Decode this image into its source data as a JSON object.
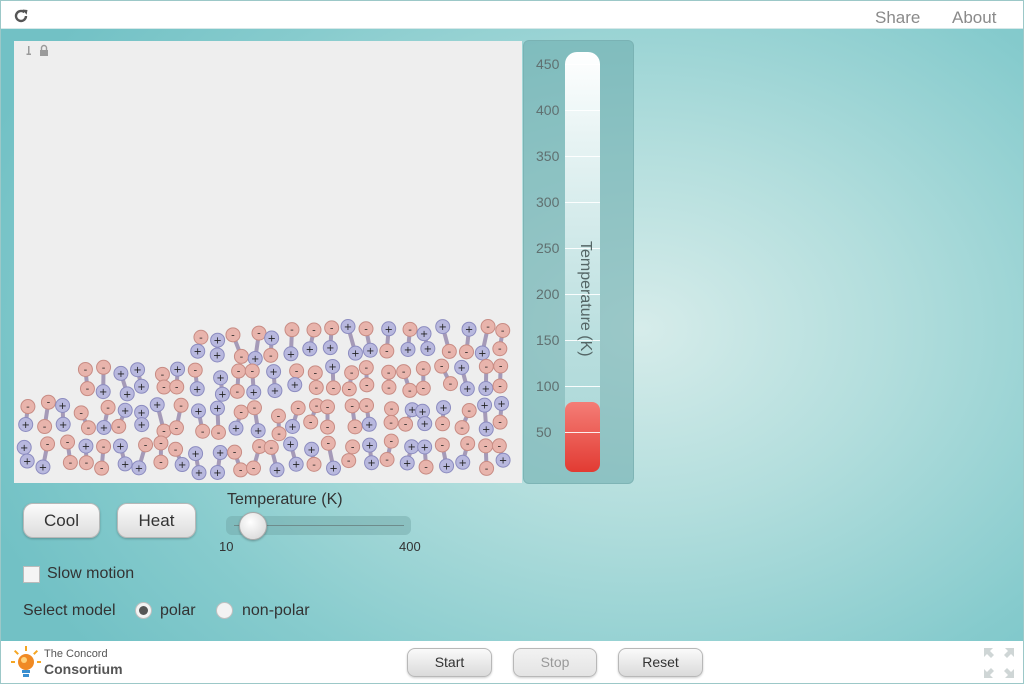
{
  "topbar": {
    "share": "Share",
    "about": "About"
  },
  "thermometer": {
    "axis_label": "Temperature (K)",
    "ticks": [
      "450",
      "400",
      "350",
      "300",
      "250",
      "200",
      "150",
      "100",
      "50"
    ],
    "max": 450,
    "value": 83
  },
  "controls": {
    "cool": "Cool",
    "heat": "Heat",
    "slider": {
      "title": "Temperature (K)",
      "min_label": "10",
      "max_label": "400",
      "min": 10,
      "max": 400,
      "value": 30
    },
    "slow_motion": "Slow motion",
    "select_model": "Select model",
    "polar": "polar",
    "non_polar": "non-polar",
    "selected_model": "polar"
  },
  "footer": {
    "logo_line1": "The Concord",
    "logo_line2": "Consortium",
    "start": "Start",
    "stop": "Stop",
    "reset": "Reset"
  },
  "colors": {
    "positive_atom": "#b8b8de",
    "negative_atom": "#e8b4ac",
    "thermo_fill": "#e94840"
  }
}
